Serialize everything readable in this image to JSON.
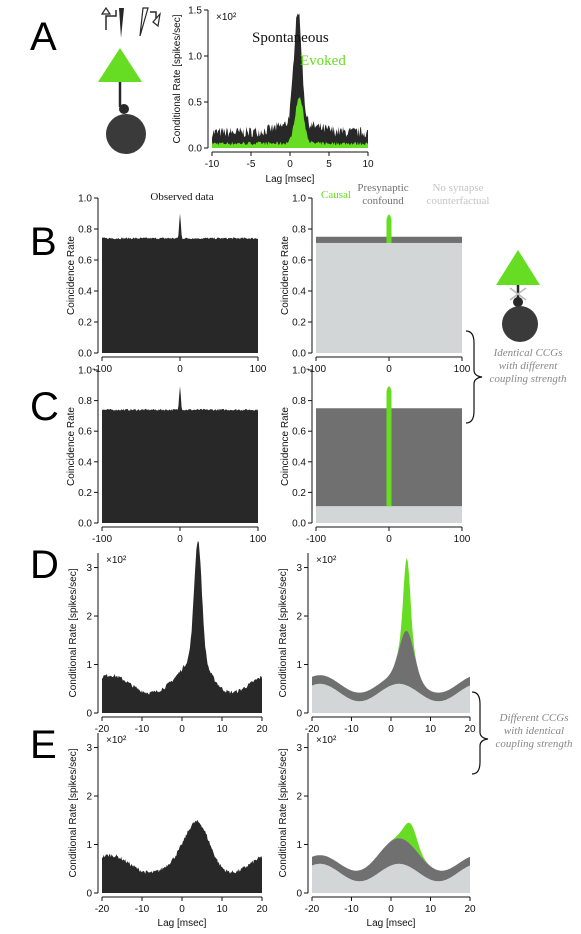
{
  "panels": [
    {
      "id": "A",
      "label": "A"
    },
    {
      "id": "B",
      "label": "B"
    },
    {
      "id": "C",
      "label": "C"
    },
    {
      "id": "D",
      "label": "D"
    },
    {
      "id": "E",
      "label": "E"
    }
  ],
  "annotations": {
    "identical_line1": "Identical CCGs",
    "identical_line2": "with different",
    "identical_line3": "coupling strength",
    "different_line1": "Different CCGs",
    "different_line2": "with identical",
    "different_line3": "coupling strength"
  },
  "colors": {
    "evoked_green": "#66dd22",
    "dark": "#282828",
    "confound_gray": "#707070",
    "counterfactual_gray": "#d3d6d6",
    "annotation_gray": "#888888"
  },
  "chart_data": [
    {
      "id": "A",
      "type": "area",
      "xlabel": "Lag [msec]",
      "ylabel": "Conditional Rate [spikes/sec]",
      "scale_note": "×10²",
      "xlim": [
        -10,
        10
      ],
      "ylim": [
        0,
        1.5
      ],
      "xticks": [
        -10,
        -5,
        0,
        5,
        10
      ],
      "yticks": [
        0.0,
        0.5,
        1.0,
        1.5
      ],
      "yticklabels": [
        "0.0",
        "0.5",
        "1.0",
        "1.5"
      ],
      "legend": [
        "Spontaneous",
        "Evoked"
      ],
      "series": [
        {
          "name": "Spontaneous",
          "baseline": 0.17,
          "peak_x": 1.0,
          "peak_y": 1.5
        },
        {
          "name": "Evoked",
          "baseline": 0.05,
          "peak_x": 1.2,
          "peak_y": 0.55
        }
      ]
    },
    {
      "id": "B-observed",
      "type": "area",
      "title": "Observed data",
      "ylabel": "Coincidence Rate",
      "xlim": [
        -100,
        100
      ],
      "ylim": [
        0,
        1.0
      ],
      "xticks": [
        -100,
        0,
        100
      ],
      "yticks": [
        0.0,
        0.2,
        0.4,
        0.6,
        0.8,
        1.0
      ],
      "yticklabels": [
        "0.0",
        "0.2",
        "0.4",
        "0.6",
        "0.8",
        "1.0"
      ],
      "baseline": 0.74,
      "peak_x": 0,
      "peak_y": 0.9
    },
    {
      "id": "B-decomposition",
      "type": "area",
      "ylabel": "Coincidence Rate",
      "xlim": [
        -100,
        100
      ],
      "ylim": [
        0,
        1.0
      ],
      "xticks": [
        -100,
        0,
        100
      ],
      "yticks": [
        0.0,
        0.2,
        0.4,
        0.6,
        0.8,
        1.0
      ],
      "yticklabels": [
        "0.0",
        "0.2",
        "0.4",
        "0.6",
        "0.8",
        "1.0"
      ],
      "legend": [
        "Causal",
        "Presynaptic confound",
        "No synapse counterfactual"
      ],
      "counterfactual": 0.71,
      "confound_top": 0.75,
      "causal_peak": 0.9
    },
    {
      "id": "C-observed",
      "type": "area",
      "ylabel": "Coincidence Rate",
      "xlim": [
        -100,
        100
      ],
      "ylim": [
        0,
        1.0
      ],
      "xticks": [
        -100,
        0,
        100
      ],
      "yticks": [
        0.0,
        0.2,
        0.4,
        0.6,
        0.8,
        1.0
      ],
      "yticklabels": [
        "0.0",
        "0.2",
        "0.4",
        "0.6",
        "0.8",
        "1.0"
      ],
      "baseline": 0.74,
      "peak_x": 0,
      "peak_y": 0.9
    },
    {
      "id": "C-decomposition",
      "type": "area",
      "ylabel": "Coincidence Rate",
      "xlim": [
        -100,
        100
      ],
      "ylim": [
        0,
        1.0
      ],
      "xticks": [
        -100,
        0,
        100
      ],
      "yticks": [
        0.0,
        0.2,
        0.4,
        0.6,
        0.8,
        1.0
      ],
      "yticklabels": [
        "0.0",
        "0.2",
        "0.4",
        "0.6",
        "0.8",
        "1.0"
      ],
      "counterfactual": 0.11,
      "confound_top": 0.75,
      "causal_peak": 0.9
    },
    {
      "id": "D-observed",
      "type": "area",
      "ylabel": "Conditional Rate [spikes/sec]",
      "scale_note": "×10²",
      "xlim": [
        -20,
        20
      ],
      "ylim": [
        0,
        3.3
      ],
      "xticks": [
        -20,
        -10,
        0,
        10,
        20
      ],
      "yticks": [
        0,
        1,
        2,
        3
      ],
      "yticklabels": [
        "0",
        "1",
        "2",
        "3"
      ],
      "peak_x": 4,
      "peak_y": 3.2
    },
    {
      "id": "D-decomposition",
      "type": "area",
      "ylabel": "Conditional Rate [spikes/sec]",
      "scale_note": "×10²",
      "xlim": [
        -20,
        20
      ],
      "ylim": [
        0,
        3.3
      ],
      "xticks": [
        -20,
        -10,
        0,
        10,
        20
      ],
      "yticks": [
        0,
        1,
        2,
        3
      ],
      "yticklabels": [
        "0",
        "1",
        "2",
        "3"
      ],
      "counterfactual_mean": 0.6,
      "counterfactual_amp": 0.18,
      "confound_amp": 0.95,
      "causal_peak": 3.2
    },
    {
      "id": "E-observed",
      "type": "area",
      "xlabel": "Lag [msec]",
      "ylabel": "Conditional Rate [spikes/sec]",
      "scale_note": "×10²",
      "xlim": [
        -20,
        20
      ],
      "ylim": [
        0,
        3.3
      ],
      "xticks": [
        -20,
        -10,
        0,
        10,
        20
      ],
      "yticks": [
        0,
        1,
        2,
        3
      ],
      "yticklabels": [
        "0",
        "1",
        "2",
        "3"
      ],
      "peak_x": 4,
      "peak_y": 1.5
    },
    {
      "id": "E-decomposition",
      "type": "area",
      "xlabel": "Lag [msec]",
      "ylabel": "Conditional Rate [spikes/sec]",
      "scale_note": "×10²",
      "xlim": [
        -20,
        20
      ],
      "ylim": [
        0,
        3.3
      ],
      "xticks": [
        -20,
        -10,
        0,
        10,
        20
      ],
      "yticks": [
        0,
        1,
        2,
        3
      ],
      "yticklabels": [
        "0",
        "1",
        "2",
        "3"
      ],
      "counterfactual_mean": 0.6,
      "counterfactual_amp": 0.18,
      "confound_amp": 0.35,
      "causal_peak": 1.45
    }
  ]
}
